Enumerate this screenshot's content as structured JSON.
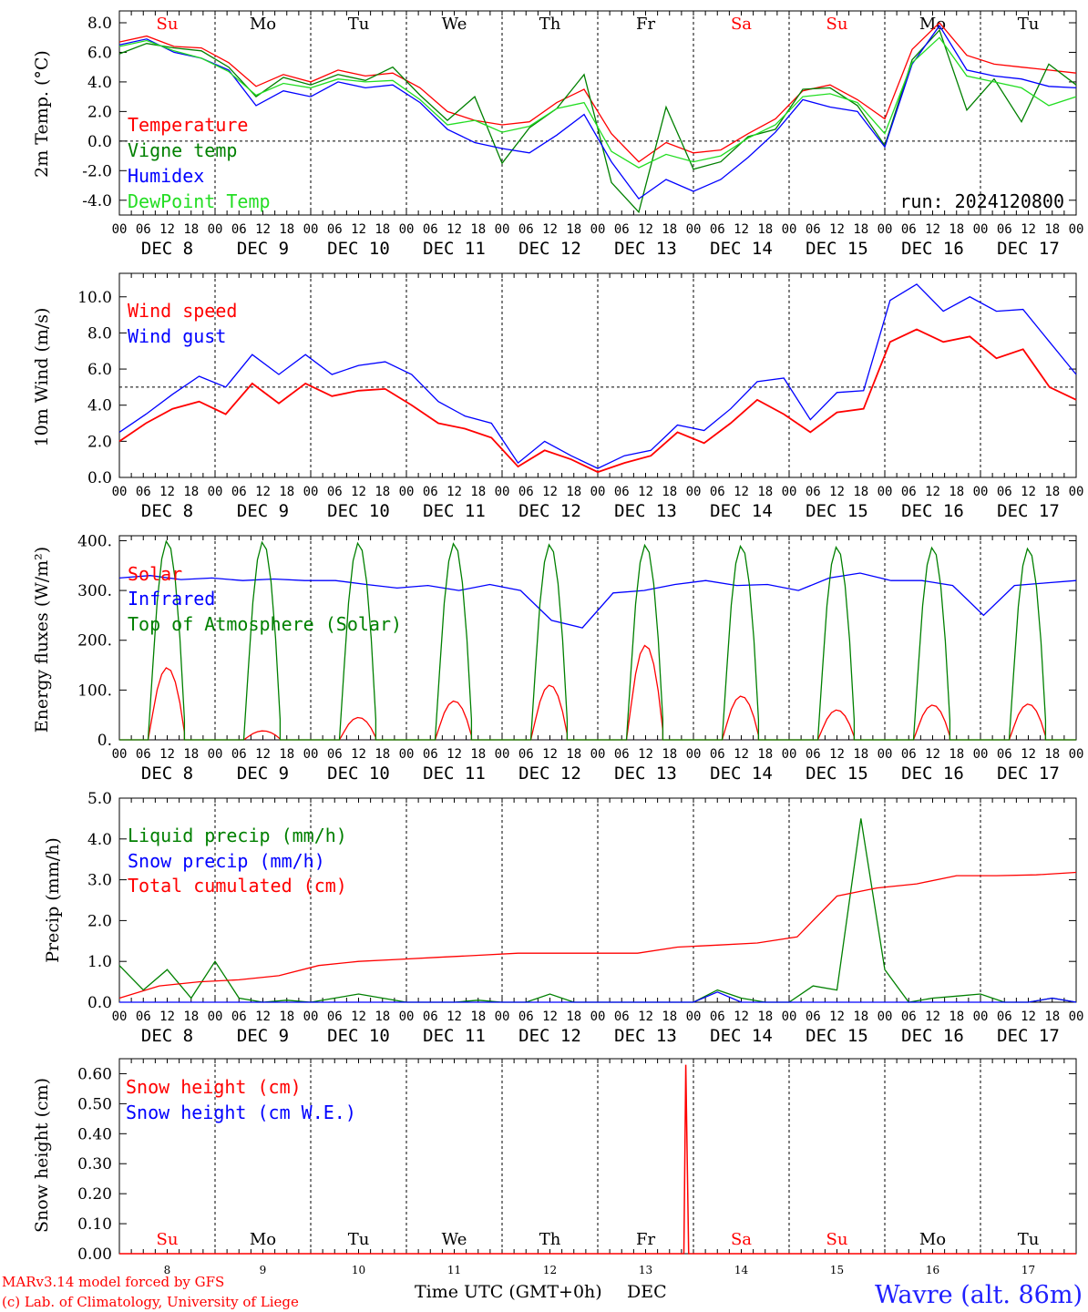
{
  "colors": {
    "red": "#ff0000",
    "green": "#008000",
    "blue": "#0000ff",
    "lightgreen": "#22dd22",
    "grid": "#000000",
    "weekend": "#ff0000"
  },
  "axis": {
    "hour_labels": [
      "00",
      "06",
      "12",
      "18"
    ],
    "date_labels": [
      "DEC  8",
      "DEC  9",
      "DEC 10",
      "DEC 11",
      "DEC 12",
      "DEC 13",
      "DEC 14",
      "DEC 15",
      "DEC 16",
      "DEC 17"
    ],
    "weekday_labels": [
      "Su",
      "Mo",
      "Tu",
      "We",
      "Th",
      "Fr",
      "Sa",
      "Su",
      "Mo",
      "Tu"
    ],
    "bottom_weekday_labels": [
      "Su",
      "Mo",
      "Tu",
      "We",
      "Th",
      "Fr",
      "Sa",
      "Su",
      "Mo",
      "Tu"
    ],
    "bottom_day_numbers": [
      "8",
      "9",
      "10",
      "11",
      "12",
      "13",
      "14",
      "15",
      "16",
      "17"
    ],
    "weekend_flags": [
      true,
      false,
      false,
      false,
      false,
      false,
      true,
      true,
      false,
      false
    ],
    "x_title": "Time UTC (GMT+0h)",
    "x_title_suffix": "DEC"
  },
  "footer": {
    "credit_line1": "MARv3.14 model forced by GFS",
    "credit_line2": "(c) Lab. of Climatology, University of Liege",
    "station": "Wavre (alt. 86m)"
  },
  "chart_data": [
    {
      "type": "line",
      "ylabel": "2m Temp. (°C)",
      "ylim": [
        -5,
        8.8
      ],
      "y_ticks": [
        "8.0",
        "6.0",
        "4.0",
        "2.0",
        "0.0",
        "-2.0",
        "-4.0"
      ],
      "annotation": "run: 2024120800",
      "reference_line": 0,
      "series": [
        {
          "name": "Temperature",
          "color": "red",
          "values": [
            6.7,
            7.1,
            6.4,
            6.3,
            5.3,
            3.7,
            4.5,
            4.0,
            4.8,
            4.4,
            4.6,
            3.6,
            2.0,
            1.4,
            1.1,
            1.3,
            2.6,
            3.5,
            0.5,
            -1.4,
            -0.1,
            -0.8,
            -0.6,
            0.5,
            1.5,
            3.4,
            3.8,
            2.8,
            1.5,
            6.2,
            8.0,
            5.8,
            5.2,
            5.0,
            4.8,
            4.6
          ]
        },
        {
          "name": "Vigne temp",
          "color": "green",
          "values": [
            5.9,
            6.6,
            6.3,
            6.1,
            5.0,
            3.0,
            4.3,
            3.8,
            4.5,
            4.1,
            5.0,
            3.1,
            1.4,
            3.0,
            -1.5,
            0.9,
            2.2,
            4.5,
            -2.8,
            -4.8,
            2.3,
            -1.9,
            -1.4,
            0.3,
            0.8,
            3.5,
            3.6,
            2.4,
            -0.3,
            5.5,
            7.5,
            2.1,
            4.2,
            1.3,
            5.2,
            3.8
          ]
        },
        {
          "name": "Humidex",
          "color": "blue",
          "values": [
            6.5,
            6.9,
            6.0,
            5.6,
            4.8,
            2.4,
            3.4,
            3.0,
            4.0,
            3.6,
            3.8,
            2.6,
            0.8,
            -0.1,
            -0.5,
            -0.8,
            0.4,
            1.8,
            -1.4,
            -3.9,
            -2.6,
            -3.4,
            -2.6,
            -1.1,
            0.6,
            2.8,
            2.3,
            2.0,
            -0.4,
            5.2,
            7.8,
            4.8,
            4.4,
            4.2,
            3.7,
            3.6
          ]
        },
        {
          "name": "DewPoint Temp",
          "color": "lightgreen",
          "values": [
            6.4,
            6.8,
            6.1,
            5.6,
            4.7,
            3.1,
            3.9,
            3.6,
            4.2,
            4.0,
            4.1,
            2.8,
            1.1,
            1.4,
            0.6,
            1.0,
            2.2,
            2.6,
            -0.7,
            -1.8,
            -0.9,
            -1.4,
            -1.0,
            0.2,
            1.1,
            3.0,
            3.2,
            2.6,
            0.5,
            5.3,
            7.0,
            4.4,
            4.0,
            3.6,
            2.4,
            3.0
          ]
        }
      ]
    },
    {
      "type": "line",
      "ylabel": "10m Wind (m/s)",
      "ylim": [
        0,
        11.3
      ],
      "y_ticks": [
        "10.0",
        "8.0",
        "6.0",
        "4.0",
        "2.0",
        "0.0"
      ],
      "reference_line": 5,
      "series": [
        {
          "name": "Wind speed",
          "color": "red",
          "values": [
            2.0,
            3.0,
            3.8,
            4.2,
            3.5,
            5.2,
            4.1,
            5.2,
            4.5,
            4.8,
            4.9,
            4.0,
            3.0,
            2.7,
            2.2,
            0.6,
            1.5,
            1.0,
            0.3,
            0.8,
            1.2,
            2.5,
            1.9,
            3.0,
            4.3,
            3.5,
            2.5,
            3.6,
            3.8,
            7.5,
            8.2,
            7.5,
            7.8,
            6.6,
            7.1,
            5.0,
            4.3
          ]
        },
        {
          "name": "Wind gust",
          "color": "blue",
          "values": [
            2.5,
            3.5,
            4.6,
            5.6,
            5.0,
            6.8,
            5.7,
            6.8,
            5.7,
            6.2,
            6.4,
            5.7,
            4.2,
            3.4,
            3.0,
            0.8,
            2.0,
            1.2,
            0.5,
            1.2,
            1.5,
            2.9,
            2.6,
            3.8,
            5.3,
            5.5,
            3.2,
            4.7,
            4.8,
            9.8,
            10.7,
            9.2,
            10.0,
            9.2,
            9.3,
            7.5,
            5.7
          ]
        }
      ]
    },
    {
      "type": "line",
      "ylabel": "Energy fluxes (W/m²)",
      "ylim": [
        0,
        410
      ],
      "y_ticks": [
        "400.",
        "300.",
        "200.",
        "100.",
        "0."
      ],
      "series": [
        {
          "name": "Solar",
          "color": "red",
          "peaks": [
            145,
            18,
            45,
            78,
            110,
            190,
            88,
            60,
            70,
            72
          ]
        },
        {
          "name": "Infrared",
          "color": "blue",
          "values": [
            325,
            330,
            322,
            325,
            320,
            323,
            320,
            320,
            312,
            305,
            310,
            300,
            312,
            300,
            240,
            225,
            295,
            300,
            312,
            320,
            310,
            312,
            300,
            325,
            335,
            320,
            320,
            310,
            250,
            310,
            315,
            320
          ]
        },
        {
          "name": "Top of Atmosphere (Solar)",
          "color": "green",
          "peaks": [
            400,
            398,
            396,
            395,
            393,
            392,
            390,
            388,
            387,
            385
          ]
        }
      ]
    },
    {
      "type": "line",
      "ylabel": "Precip (mm/h)",
      "ylim": [
        0,
        5.0
      ],
      "y_ticks": [
        "5.0",
        "4.0",
        "3.0",
        "2.0",
        "1.0",
        "0.0"
      ],
      "series": [
        {
          "name": "Liquid precip (mm/h)",
          "color": "green",
          "values": [
            0.9,
            0.3,
            0.8,
            0.1,
            1.0,
            0.1,
            0.0,
            0.05,
            0.0,
            0.1,
            0.2,
            0.1,
            0.0,
            0.0,
            0.0,
            0.05,
            0.0,
            0.0,
            0.2,
            0.0,
            0.0,
            0.0,
            0.0,
            0.0,
            0.0,
            0.3,
            0.1,
            0.0,
            0.0,
            0.4,
            0.3,
            4.5,
            0.8,
            0.0,
            0.1,
            0.15,
            0.2,
            0.0,
            0.0,
            0.1,
            0.0
          ]
        },
        {
          "name": "Snow precip (mm/h)",
          "color": "blue",
          "values": [
            0.0,
            0.0,
            0.0,
            0.0,
            0.0,
            0.0,
            0.0,
            0.0,
            0.0,
            0.0,
            0.0,
            0.0,
            0.0,
            0.0,
            0.0,
            0.0,
            0.0,
            0.0,
            0.0,
            0.0,
            0.0,
            0.0,
            0.0,
            0.0,
            0.0,
            0.25,
            0.0,
            0.0,
            0.0,
            0.0,
            0.0,
            0.0,
            0.0,
            0.0,
            0.0,
            0.0,
            0.0,
            0.0,
            0.0,
            0.1,
            0.0
          ]
        },
        {
          "name": "Total cumulated (cm)",
          "color": "red",
          "values": [
            0.1,
            0.4,
            0.5,
            0.55,
            0.65,
            0.9,
            1.0,
            1.05,
            1.1,
            1.15,
            1.2,
            1.2,
            1.2,
            1.2,
            1.35,
            1.4,
            1.45,
            1.6,
            2.6,
            2.8,
            2.9,
            3.1,
            3.1,
            3.12,
            3.18
          ]
        }
      ]
    },
    {
      "type": "line",
      "ylabel": "Snow height (cm)",
      "ylim": [
        0,
        0.65
      ],
      "y_ticks": [
        "0.60",
        "0.50",
        "0.40",
        "0.30",
        "0.20",
        "0.10",
        "0.00"
      ],
      "series": [
        {
          "name": "Snow height (cm)",
          "color": "red",
          "spike": {
            "day": 5.92,
            "value": 0.63
          }
        },
        {
          "name": "Snow height (cm W.E.)",
          "color": "blue",
          "values": []
        }
      ]
    }
  ]
}
